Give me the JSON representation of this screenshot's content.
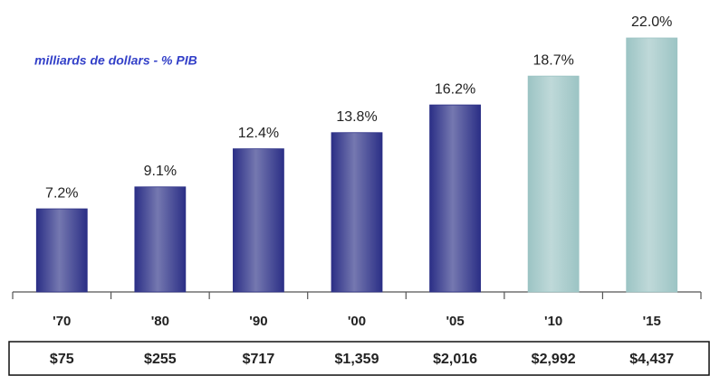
{
  "chart_data": {
    "type": "bar",
    "subtitle": "milliards de dollars - % PIB",
    "categories": [
      "'70",
      "'80",
      "'90",
      "'00",
      "'05",
      "'10",
      "'15"
    ],
    "values": [
      7.2,
      9.1,
      12.4,
      13.8,
      16.2,
      18.7,
      22.0
    ],
    "value_labels": [
      "7.2%",
      "9.1%",
      "12.4%",
      "13.8%",
      "16.2%",
      "18.7%",
      "22.0%"
    ],
    "colors": [
      "#2b2f86",
      "#2b2f86",
      "#2b2f86",
      "#2b2f86",
      "#2b2f86",
      "#9cc4c4",
      "#9cc4c4"
    ],
    "table_row": [
      "$75",
      "$255",
      "$717",
      "$1,359",
      "$2,016",
      "$2,992",
      "$4,437"
    ]
  }
}
